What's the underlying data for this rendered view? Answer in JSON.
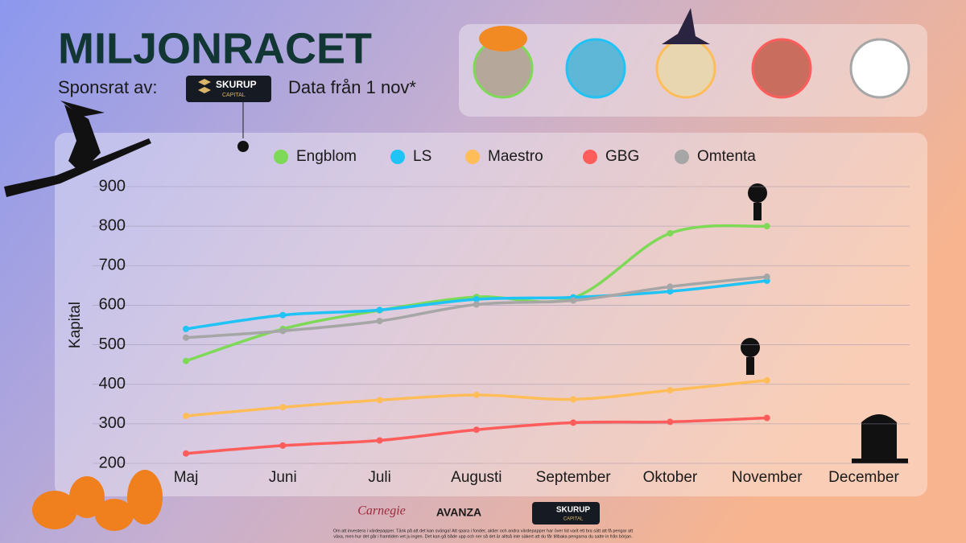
{
  "header": {
    "title": "MILJONRACET",
    "sponsor_label": "Sponsrat av:",
    "sponsor_name": "SKURUP",
    "sponsor_sub": "CAPITAL",
    "data_note": "Data från 1 nov*"
  },
  "chart_data": {
    "type": "line",
    "y_label": "Kapital",
    "categories": [
      "Maj",
      "Juni",
      "Juli",
      "Augusti",
      "September",
      "Oktober",
      "November",
      "December"
    ],
    "series": [
      {
        "name": "Engblom",
        "color": "#7ed957",
        "values": [
          459,
          540,
          587,
          621,
          619,
          782,
          800,
          null
        ]
      },
      {
        "name": "LS",
        "color": "#1fc3f5",
        "values": [
          540,
          575,
          588,
          615,
          620,
          635,
          662,
          null
        ]
      },
      {
        "name": "Maestro",
        "color": "#ffbd59",
        "values": [
          320,
          342,
          360,
          373,
          362,
          385,
          410,
          null
        ]
      },
      {
        "name": "GBG",
        "color": "#ff5c5c",
        "values": [
          225,
          245,
          258,
          285,
          303,
          305,
          315,
          null
        ]
      },
      {
        "name": "Omtenta",
        "color": "#a6a6a6",
        "values": [
          518,
          535,
          560,
          602,
          612,
          647,
          672,
          null
        ]
      }
    ],
    "ylim": [
      200,
      900
    ],
    "yticks": [
      200,
      300,
      400,
      500,
      600,
      700,
      800,
      900
    ],
    "grid": true
  },
  "footer": {
    "logos": [
      "Carnegie",
      "AVANZA",
      "SKURUP",
      "CAPITAL"
    ],
    "disclaimer": [
      "Om att investera i värdepapper. Tänk på att det kan svänga! Att spara i fonder, aktier och andra värdepapper har över tid varit ett bra sätt att få pengar att",
      "växa, men hur det går i framtiden vet ju ingen. Det kan gå både upp och ner så det är alltså inte säkert att du får tillbaka pengarna du satte in från början."
    ]
  }
}
